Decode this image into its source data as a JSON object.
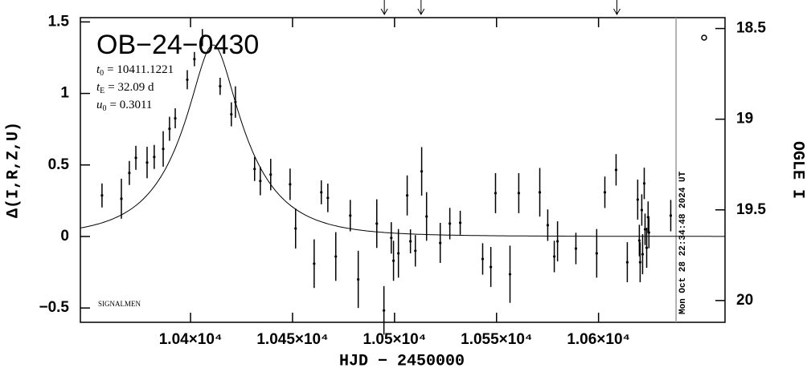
{
  "chart_data": {
    "type": "scatter",
    "title": "OB−24−0430",
    "xlabel": "HJD − 2450000",
    "ylabel": "Δ(I,R,Z,U)",
    "y2label": "OGLE I",
    "footnote": "SIGNALMEN",
    "timestamp": "Mon Oct 28 22:34:48 2024 UT",
    "parameters": [
      {
        "symbol": "t",
        "subscript": "0",
        "value": 10411.1221,
        "label": "= 10411.1221"
      },
      {
        "symbol": "t",
        "subscript": "E",
        "value": 32.09,
        "label": "= 32.09 d"
      },
      {
        "symbol": "u",
        "subscript": "0",
        "value": 0.3011,
        "label": "= 0.3011"
      }
    ],
    "color": "#000000",
    "model_color": "#000000",
    "now_line": 10638,
    "now_color": "#999999",
    "markers": [
      10495,
      10513,
      10609
    ],
    "x": [
      10356.6,
      10366.1,
      10370,
      10373.2,
      10378.7,
      10382.2,
      10386.6,
      10389.7,
      10392.5,
      10398.4,
      10401.9,
      10405.8,
      10414.5,
      10420,
      10422,
      10431.4,
      10434.2,
      10439.3,
      10448.8,
      10451.5,
      10460.6,
      10464.1,
      10467.3,
      10471.2,
      10478.3,
      10482.2,
      10491.3,
      10494.8,
      10498.4,
      10499.5,
      10501.9,
      10506.2,
      10507.8,
      10510.2,
      10513.3,
      10515.7,
      10522.4,
      10527.1,
      10532.2,
      10543.2,
      10547.2,
      10549.5,
      10556.6,
      10560.9,
      10571.2,
      10575.1,
      10578.3,
      10579.9,
      10588.9,
      10599.1,
      10603.1,
      10608.6,
      10614.1,
      10619.2,
      10620,
      10620.4,
      10621.2,
      10621.6,
      10622.4,
      10622.8,
      10623.6,
      10624.3,
      10624.7,
      10635.4
    ],
    "values": [
      0.287,
      0.264,
      0.444,
      0.55,
      0.517,
      0.556,
      0.612,
      0.753,
      0.826,
      1.096,
      1.24,
      1.39,
      1.05,
      0.854,
      0.94,
      0.472,
      0.388,
      0.433,
      0.365,
      0.056,
      -0.19,
      0.309,
      0.27,
      -0.14,
      0.146,
      -0.3,
      0.09,
      -0.517,
      -0.01,
      -0.17,
      -0.118,
      0.287,
      -0.034,
      -0.1,
      0.455,
      0.14,
      -0.045,
      0.09,
      0.096,
      -0.157,
      -0.213,
      0.303,
      -0.264,
      0.303,
      0.309,
      0.079,
      -0.14,
      -0.034,
      -0.084,
      -0.118,
      0.309,
      0.466,
      -0.18,
      0.258,
      -0.028,
      -0.18,
      0.185,
      -0.124,
      0.371,
      0.05,
      -0.079,
      0.135,
      0.028,
      0.146
    ],
    "errors": [
      0.084,
      0.14,
      0.084,
      0.084,
      0.11,
      0.084,
      0.124,
      0.084,
      0.07,
      0.067,
      0.05,
      0.06,
      0.06,
      0.084,
      0.11,
      0.084,
      0.1,
      0.11,
      0.11,
      0.14,
      0.17,
      0.084,
      0.1,
      0.17,
      0.11,
      0.2,
      0.17,
      0.17,
      0.11,
      0.14,
      0.17,
      0.14,
      0.084,
      0.11,
      0.17,
      0.17,
      0.14,
      0.11,
      0.084,
      0.11,
      0.14,
      0.14,
      0.2,
      0.14,
      0.17,
      0.11,
      0.11,
      0.14,
      0.11,
      0.17,
      0.11,
      0.11,
      0.14,
      0.14,
      0.11,
      0.14,
      0.11,
      0.14,
      0.11,
      0.11,
      0.14,
      0.11,
      0.11,
      0.11
    ],
    "xlim": [
      10346,
      10662
    ],
    "xticks": [
      {
        "value": 10400,
        "label": "1.04×10⁴"
      },
      {
        "value": 10450,
        "label": "1.045×10⁴"
      },
      {
        "value": 10500,
        "label": "1.05×10⁴"
      },
      {
        "value": 10550,
        "label": "1.055×10⁴"
      },
      {
        "value": 10600,
        "label": "1.06×10⁴"
      }
    ],
    "ylim": [
      -0.6,
      1.53
    ],
    "yticks": [
      {
        "value": -0.5,
        "label": "−0.5"
      },
      0,
      0.5,
      1,
      1.5
    ],
    "y2lim": [
      20.12,
      18.44
    ],
    "y2ticks": [
      18.5,
      19,
      19.5,
      20
    ]
  }
}
